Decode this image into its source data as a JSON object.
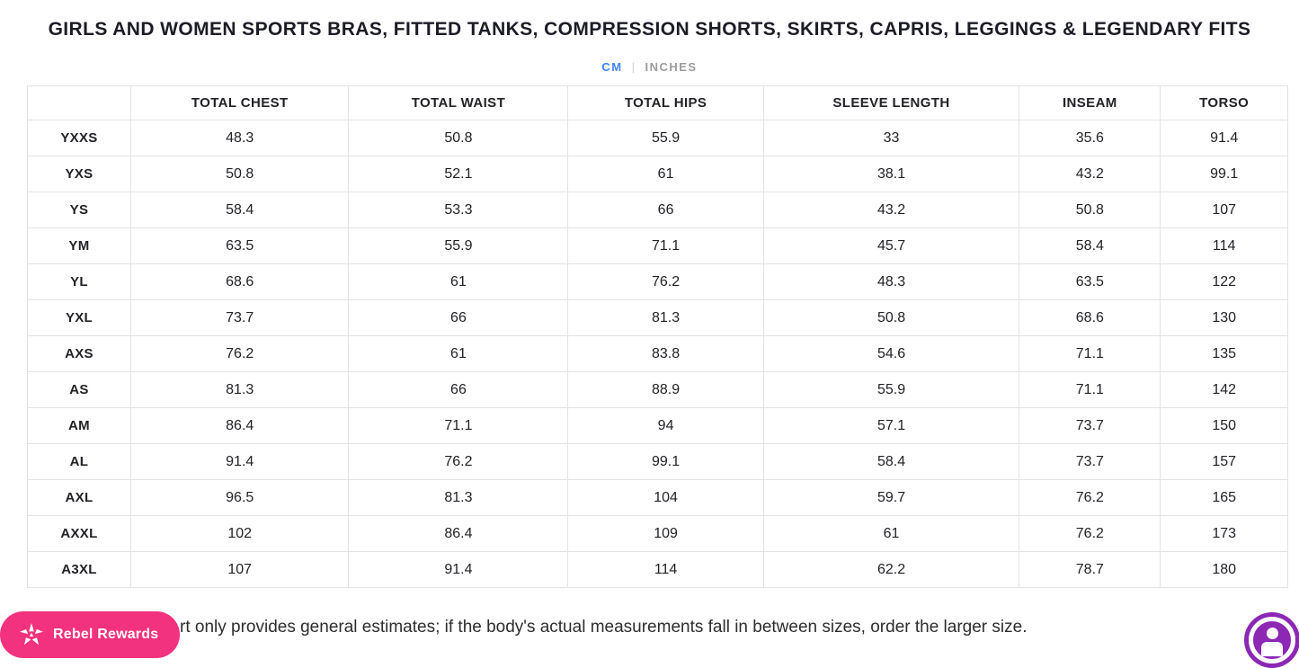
{
  "page": {
    "title": "GIRLS AND WOMEN SPORTS BRAS, FITTED TANKS, COMPRESSION SHORTS, SKIRTS, CAPRIS, LEGGINGS & LEGENDARY FITS",
    "footnote_visible_text": "rt only provides general estimates; if the body's actual measurements fall in between sizes, order the larger size."
  },
  "unit_toggle": {
    "cm_label": "CM",
    "separator": "|",
    "inches_label": "INCHES",
    "active_unit": "CM",
    "active_color": "#4285f4",
    "inactive_color": "#9b9b9b"
  },
  "table": {
    "columns": [
      "",
      "TOTAL CHEST",
      "TOTAL WAIST",
      "TOTAL HIPS",
      "SLEEVE LENGTH",
      "INSEAM",
      "TORSO"
    ],
    "rows": [
      {
        "size": "YXXS",
        "values": [
          "48.3",
          "50.8",
          "55.9",
          "33",
          "35.6",
          "91.4"
        ]
      },
      {
        "size": "YXS",
        "values": [
          "50.8",
          "52.1",
          "61",
          "38.1",
          "43.2",
          "99.1"
        ]
      },
      {
        "size": "YS",
        "values": [
          "58.4",
          "53.3",
          "66",
          "43.2",
          "50.8",
          "107"
        ]
      },
      {
        "size": "YM",
        "values": [
          "63.5",
          "55.9",
          "71.1",
          "45.7",
          "58.4",
          "114"
        ]
      },
      {
        "size": "YL",
        "values": [
          "68.6",
          "61",
          "76.2",
          "48.3",
          "63.5",
          "122"
        ]
      },
      {
        "size": "YXL",
        "values": [
          "73.7",
          "66",
          "81.3",
          "50.8",
          "68.6",
          "130"
        ]
      },
      {
        "size": "AXS",
        "values": [
          "76.2",
          "61",
          "83.8",
          "54.6",
          "71.1",
          "135"
        ]
      },
      {
        "size": "AS",
        "values": [
          "81.3",
          "66",
          "88.9",
          "55.9",
          "71.1",
          "142"
        ]
      },
      {
        "size": "AM",
        "values": [
          "86.4",
          "71.1",
          "94",
          "57.1",
          "73.7",
          "150"
        ]
      },
      {
        "size": "AL",
        "values": [
          "91.4",
          "76.2",
          "99.1",
          "58.4",
          "73.7",
          "157"
        ]
      },
      {
        "size": "AXL",
        "values": [
          "96.5",
          "81.3",
          "104",
          "59.7",
          "76.2",
          "165"
        ]
      },
      {
        "size": "AXXL",
        "values": [
          "102",
          "86.4",
          "109",
          "61",
          "76.2",
          "173"
        ]
      },
      {
        "size": "A3XL",
        "values": [
          "107",
          "91.4",
          "114",
          "62.2",
          "78.7",
          "180"
        ]
      }
    ]
  },
  "rewards_badge": {
    "label": "Rebel Rewards",
    "background_color": "#f2317f",
    "icon": "star-icon"
  },
  "accessibility_button": {
    "icon": "accessibility-person-icon",
    "background_color": "#8c28b4"
  }
}
